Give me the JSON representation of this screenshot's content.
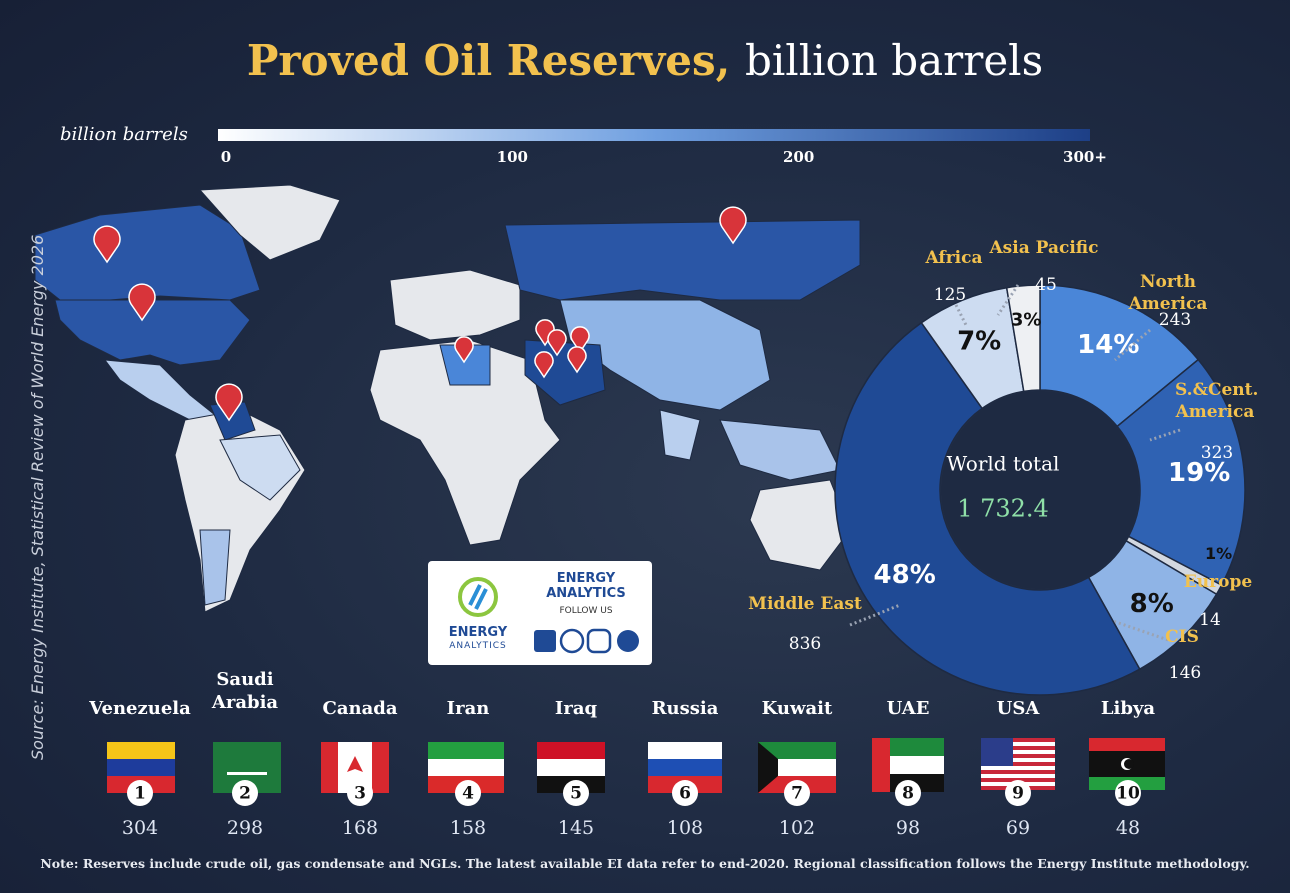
{
  "header": {
    "title_highlight": "Proved Oil Reserves,",
    "title_rest": "billion barrels"
  },
  "color_scale": {
    "label": "billion barrels",
    "range": [
      0,
      300
    ],
    "ticks": [
      0,
      100,
      200,
      {
        "value": 300,
        "label": "300+"
      }
    ]
  },
  "source": "Source: Energy Institute, Statistical Review of World Energy 2026",
  "chart_data": {
    "type": "donut",
    "center_label": "World total",
    "total": {
      "value": 1732.4,
      "label": "1 732.4"
    },
    "categories": [
      "North America",
      "S.&Cent. America",
      "Europe",
      "CIS",
      "Middle East",
      "Africa",
      "Asia Pacific"
    ],
    "values": [
      243,
      323,
      14,
      146,
      836,
      125,
      45
    ],
    "percent_labels": [
      "14%",
      "19%",
      "1%",
      "8%",
      "48%",
      "7%",
      "3%"
    ],
    "colors": [
      "#4a86d8",
      "#2f62b3",
      "#d3d8e0",
      "#8fb4e6",
      "#1f4a95",
      "#cddcf1",
      "#eef0f3"
    ]
  },
  "logo": {
    "name_top": "ENERGY",
    "name_bottom": "ANALYTICS",
    "title": "ENERGY ANALYTICS",
    "follow": "FOLLOW US"
  },
  "countries": {
    "names": [
      "Venezuela",
      "Saudi Arabia",
      "Canada",
      "Iran",
      "Iraq",
      "Russia",
      "Kuwait",
      "UAE",
      "USA",
      "Libya"
    ],
    "ranks": [
      1,
      2,
      3,
      4,
      5,
      6,
      7,
      8,
      9,
      10
    ],
    "values": [
      304,
      298,
      168,
      158,
      145,
      108,
      102,
      98,
      69,
      48
    ]
  },
  "note": "Note: Reserves include crude oil, gas condensate and NGLs. The latest available EI data refer to end-2020. Regional classification follows the Energy Institute methodology."
}
